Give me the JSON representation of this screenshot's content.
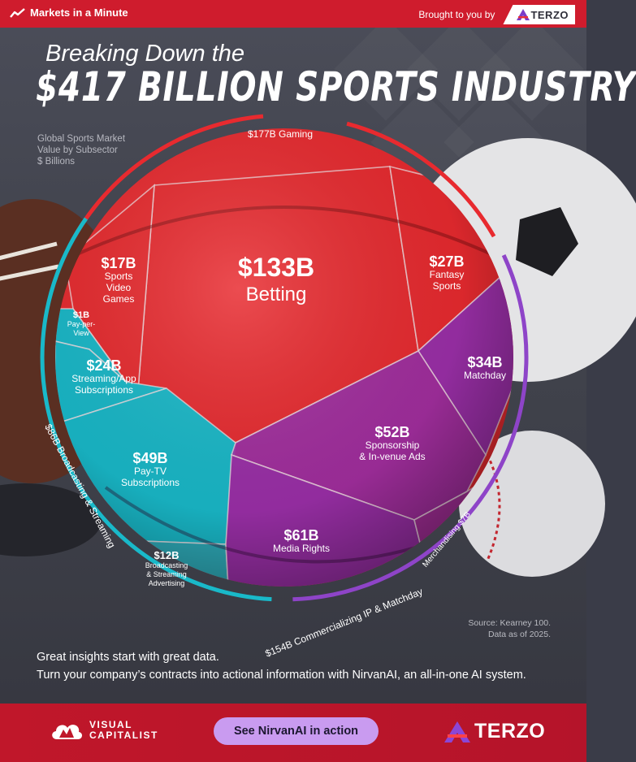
{
  "header": {
    "brand": "Markets in a Minute",
    "sponsor_text": "Brought to you by",
    "sponsor_name": "TERZO"
  },
  "title": {
    "line1": "Breaking Down the",
    "line2": "$417 BILLION SPORTS INDUSTRY"
  },
  "subtitle": [
    "Global Sports Market",
    "Value by Subsector",
    "$ Billions"
  ],
  "chart_data": {
    "type": "voronoi-treemap",
    "title": "Breaking Down the $417 BILLION SPORTS INDUSTRY",
    "total": 417,
    "unit": "$ Billions",
    "groups": [
      {
        "name": "Gaming",
        "value": 177,
        "value_label": "$177B",
        "color": "#e82a2f",
        "items": [
          {
            "name": "Betting",
            "value": 133,
            "label": "$133B"
          },
          {
            "name": "Fantasy Sports",
            "value": 27,
            "label": "$27B"
          },
          {
            "name": "Sports Video Games",
            "value": 17,
            "label": "$17B"
          }
        ]
      },
      {
        "name": "Commercializing IP & Matchday",
        "value": 154,
        "value_label": "$154B",
        "color": "#9b2fa8",
        "items": [
          {
            "name": "Matchday",
            "value": 34,
            "label": "$34B"
          },
          {
            "name": "Sponsorship & In-venue Ads",
            "value": 52,
            "label": "$52B"
          },
          {
            "name": "Media Rights",
            "value": 61,
            "label": "$61B"
          },
          {
            "name": "Merchandising",
            "value": 7,
            "label": "$7B"
          }
        ]
      },
      {
        "name": "Broadcasting & Streaming",
        "value": 86,
        "value_label": "$86B",
        "color": "#19b9c9",
        "items": [
          {
            "name": "Pay-per-View",
            "value": 1,
            "label": "$1B"
          },
          {
            "name": "Streaming/App Subscriptions",
            "value": 24,
            "label": "$24B"
          },
          {
            "name": "Pay-TV Subscriptions",
            "value": 49,
            "label": "$49B"
          },
          {
            "name": "Broadcasting & Streaming Advertising",
            "value": 12,
            "label": "$12B"
          }
        ]
      }
    ],
    "cell_labels": {
      "betting": [
        "$133B",
        "Betting"
      ],
      "fantasy": [
        "$27B",
        "Fantasy",
        "Sports"
      ],
      "videogames": [
        "$17B",
        "Sports",
        "Video",
        "Games"
      ],
      "ppv": [
        "$1B",
        "Pay-per-",
        "View"
      ],
      "streaming": [
        "$24B",
        "Streaming/App",
        "Subscriptions"
      ],
      "paytv": [
        "$49B",
        "Pay-TV",
        "Subscriptions"
      ],
      "advertising": [
        "$12B",
        "Broadcasting",
        "& Streaming",
        "Advertising"
      ],
      "matchday": [
        "$34B",
        "Matchday"
      ],
      "sponsorship": [
        "$52B",
        "Sponsorship",
        "& In-venue Ads"
      ],
      "media": [
        "$61B",
        "Media Rights"
      ],
      "merch": [
        "$7B",
        "Merchandising"
      ]
    }
  },
  "source": [
    "Source: Kearney 100.",
    "Data as of 2025."
  ],
  "promo": {
    "line1": "Great insights start with great data.",
    "line2": "Turn your company’s contracts into actional information with NirvanAI, an all-in-one AI system."
  },
  "footer": {
    "vc_line1": "VISUAL",
    "vc_line2": "CAPITALIST",
    "cta_label": "See NirvanAI in action",
    "terzo_name": "TERZO"
  },
  "colors": {
    "red": "#cf1c2d",
    "gaming": "#e82a2f",
    "commercial": "#9b2fa8",
    "broadcast": "#19b9c9",
    "cta": "#c99bf0"
  }
}
